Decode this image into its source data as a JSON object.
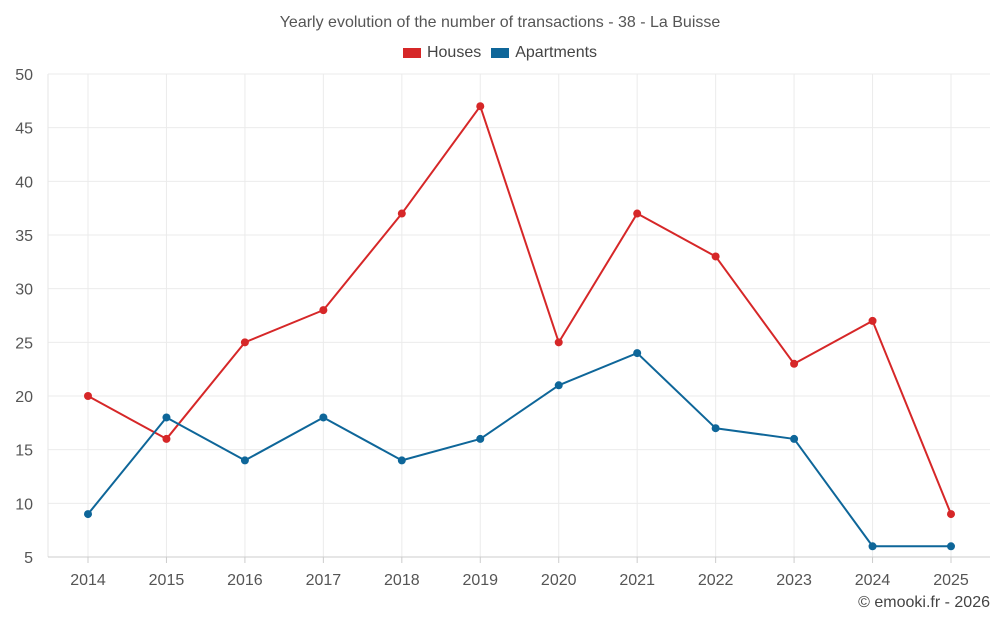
{
  "chart_data": {
    "type": "line",
    "title": "Yearly evolution of the number of transactions - 38 - La Buisse",
    "categories": [
      "2014",
      "2015",
      "2016",
      "2017",
      "2018",
      "2019",
      "2020",
      "2021",
      "2022",
      "2023",
      "2024",
      "2025"
    ],
    "series": [
      {
        "name": "Houses",
        "color": "#d62728",
        "values": [
          20,
          16,
          25,
          28,
          37,
          47,
          25,
          37,
          33,
          23,
          27,
          9
        ]
      },
      {
        "name": "Apartments",
        "color": "#0e6699",
        "values": [
          9,
          18,
          14,
          18,
          14,
          16,
          21,
          24,
          17,
          16,
          6,
          6
        ]
      }
    ],
    "ylim": [
      5,
      50
    ],
    "yticks": [
      5,
      10,
      15,
      20,
      25,
      30,
      35,
      40,
      45,
      50
    ],
    "grid": true,
    "legend": "top-center",
    "xlabel": "",
    "ylabel": ""
  },
  "credit": "© emooki.fr - 2026"
}
